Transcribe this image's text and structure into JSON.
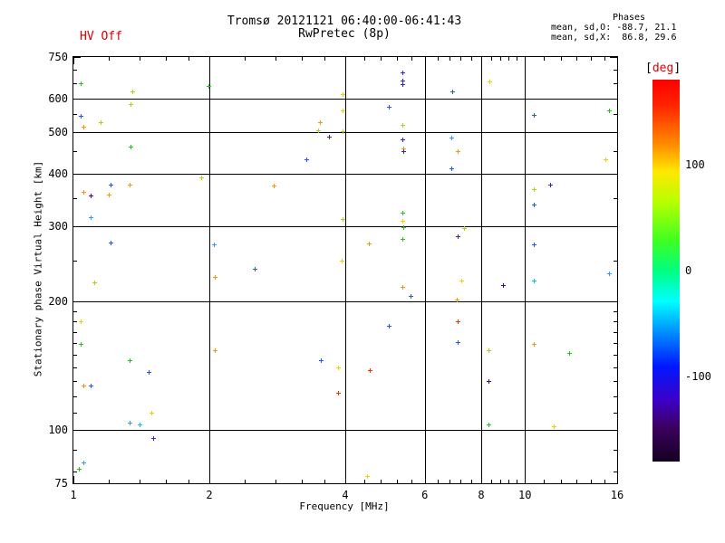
{
  "header": {
    "hv_status": "HV Off",
    "title": "Tromsø 20121121 06:40:00-06:41:43",
    "subtitle": "RwPretec (8p)",
    "stats_title": "Phases",
    "stats_o": "mean, sd,O: -88.7, 21.1",
    "stats_x": "mean, sd,X:  86.8, 29.6"
  },
  "colors": {
    "hv_red": "#d20000",
    "axis_black": "#000000"
  },
  "chart_data": {
    "type": "scatter",
    "title": "Tromsø 20121121 06:40:00-06:41:43",
    "subtitle": "RwPretec (8p)",
    "xlabel": "Frequency [MHz]",
    "ylabel": "Stationary phase Virtual Height [km]",
    "xscale": "log",
    "yscale": "log",
    "xlim": [
      1,
      16
    ],
    "ylim": [
      75,
      750
    ],
    "grid": true,
    "x_major_ticks": [
      1,
      2,
      4,
      6,
      8,
      10,
      16
    ],
    "x_minor_ticks": [
      1.2,
      1.4,
      1.6,
      1.8,
      2.4,
      2.8,
      3.2,
      3.6,
      4.4,
      4.8,
      5.2,
      5.6,
      6.4,
      6.8,
      7.2,
      7.6,
      8.4,
      8.8,
      9.2,
      9.6,
      11,
      12,
      13,
      14,
      15
    ],
    "x_gridlines": [
      2,
      4,
      6,
      8,
      10
    ],
    "y_major_ticks": [
      75,
      100,
      200,
      300,
      400,
      500,
      600,
      750
    ],
    "y_minor_ticks": [
      80,
      90,
      110,
      120,
      130,
      140,
      150,
      160,
      170,
      180,
      190,
      250,
      350,
      450,
      550,
      650,
      700
    ],
    "y_gridlines": [
      100,
      200,
      300,
      400,
      500,
      600
    ],
    "palette": {
      "gr": "#22c51f",
      "yg": "#a6d80a",
      "ye": "#edd200",
      "or": "#ff9400",
      "rd": "#ff3000",
      "lb": "#2e9bff",
      "cy": "#00c6e0",
      "bl": "#1f57ff",
      "nv": "#2a28cf",
      "pu": "#4a0096"
    },
    "phase_deg_by_color": {
      "gr": 25,
      "yg": 75,
      "ye": 100,
      "or": 140,
      "rd": 160,
      "lb": -70,
      "cy": -45,
      "bl": -100,
      "nv": -135,
      "pu": -160
    },
    "points_format": [
      "freq_MHz",
      "virtual_height_km",
      "color_key"
    ],
    "points": [
      [
        1.04,
        651,
        "gr"
      ],
      [
        1.35,
        623,
        "yg"
      ],
      [
        1.34,
        582,
        "yg"
      ],
      [
        1.04,
        546,
        "bl"
      ],
      [
        1.15,
        527,
        "yg"
      ],
      [
        1.05,
        515,
        "or"
      ],
      [
        1.99,
        641,
        "gr"
      ],
      [
        3.94,
        614,
        "ye"
      ],
      [
        3.94,
        562,
        "ye"
      ],
      [
        3.52,
        527,
        "or"
      ],
      [
        3.48,
        505,
        "yg"
      ],
      [
        3.94,
        503,
        "yg"
      ],
      [
        3.68,
        488,
        "nv"
      ],
      [
        1.34,
        462,
        "gr"
      ],
      [
        3.28,
        432,
        "bl"
      ],
      [
        1.92,
        392,
        "yg"
      ],
      [
        1.21,
        377,
        "bl"
      ],
      [
        1.33,
        377,
        "or"
      ],
      [
        1.05,
        362,
        "or"
      ],
      [
        1.09,
        355,
        "pu"
      ],
      [
        1.2,
        357,
        "or"
      ],
      [
        2.78,
        375,
        "or"
      ],
      [
        1.09,
        316,
        "lb"
      ],
      [
        3.94,
        313,
        "yg"
      ],
      [
        1.21,
        275,
        "bl"
      ],
      [
        2.05,
        273,
        "lb"
      ],
      [
        3.93,
        250,
        "ye"
      ],
      [
        2.52,
        239,
        "bl"
      ],
      [
        5.35,
        690,
        "nv"
      ],
      [
        5.35,
        660,
        "nv"
      ],
      [
        5.35,
        648,
        "nv"
      ],
      [
        8.34,
        657,
        "ye"
      ],
      [
        6.9,
        623,
        "bl"
      ],
      [
        4.99,
        573,
        "bl"
      ],
      [
        10.46,
        548,
        "bl"
      ],
      [
        15.35,
        562,
        "gr"
      ],
      [
        5.35,
        520,
        "yg"
      ],
      [
        5.35,
        481,
        "nv"
      ],
      [
        5.38,
        458,
        "or"
      ],
      [
        5.38,
        451,
        "nv"
      ],
      [
        6.88,
        485,
        "lb"
      ],
      [
        7.1,
        451,
        "or"
      ],
      [
        6.88,
        411,
        "bl"
      ],
      [
        15.07,
        432,
        "ye"
      ],
      [
        11.37,
        377,
        "nv"
      ],
      [
        10.46,
        367,
        "yg"
      ],
      [
        10.46,
        338,
        "bl"
      ],
      [
        5.35,
        323,
        "gr"
      ],
      [
        5.35,
        310,
        "ye"
      ],
      [
        5.38,
        299,
        "gr"
      ],
      [
        7.33,
        298,
        "yg"
      ],
      [
        7.1,
        285,
        "nv"
      ],
      [
        4.51,
        274,
        "or"
      ],
      [
        5.35,
        281,
        "gr"
      ],
      [
        10.46,
        273,
        "bl"
      ],
      [
        1.11,
        222,
        "yg"
      ],
      [
        2.06,
        229,
        "or"
      ],
      [
        1.04,
        180,
        "ye"
      ],
      [
        1.04,
        159,
        "gr"
      ],
      [
        1.33,
        146,
        "gr"
      ],
      [
        1.47,
        137,
        "bl"
      ],
      [
        1.05,
        127,
        "or"
      ],
      [
        1.09,
        127,
        "bl"
      ],
      [
        2.06,
        154,
        "or"
      ],
      [
        3.53,
        146,
        "bl"
      ],
      [
        3.86,
        140,
        "ye"
      ],
      [
        3.86,
        122,
        "rd"
      ],
      [
        1.49,
        110,
        "ye"
      ],
      [
        1.33,
        104,
        "lb"
      ],
      [
        1.4,
        103,
        "cy"
      ],
      [
        1.5,
        96,
        "nv"
      ],
      [
        1.05,
        84,
        "lb"
      ],
      [
        1.03,
        81,
        "gr"
      ],
      [
        5.35,
        217,
        "or"
      ],
      [
        5.58,
        206,
        "bl"
      ],
      [
        7.23,
        224,
        "ye"
      ],
      [
        7.06,
        202,
        "or"
      ],
      [
        8.94,
        219,
        "pu"
      ],
      [
        10.48,
        224,
        "cy"
      ],
      [
        15.35,
        233,
        "lb"
      ],
      [
        4.99,
        176,
        "bl"
      ],
      [
        7.1,
        180,
        "rd"
      ],
      [
        7.1,
        161,
        "bl"
      ],
      [
        4.53,
        138,
        "rd"
      ],
      [
        8.3,
        154,
        "yg"
      ],
      [
        10.46,
        159,
        "or"
      ],
      [
        12.52,
        152,
        "gr"
      ],
      [
        8.3,
        130,
        "pu"
      ],
      [
        8.3,
        103,
        "gr"
      ],
      [
        11.58,
        102,
        "ye"
      ],
      [
        4.47,
        78,
        "ye"
      ]
    ],
    "colorbar": {
      "label_open": "[",
      "label": "deg",
      "label_close": "]",
      "unit": "deg",
      "max": 180,
      "min": -180,
      "ticks": [
        {
          "v": 100,
          "label": "100"
        },
        {
          "v": 0,
          "label": "0"
        },
        {
          "v": -100,
          "label": "-100"
        }
      ],
      "gradient_stops": [
        "#ff0000 0%",
        "#ff2600 7%",
        "#ff8c00 17%",
        "#ffe700 24%",
        "#b8ff00 32%",
        "#40ff20 42%",
        "#00ff80 50%",
        "#00ffff 58%",
        "#0090ff 66%",
        "#0018ff 75%",
        "#3c00c8 84%",
        "#3c0060 91%",
        "#160020 100%"
      ]
    }
  }
}
